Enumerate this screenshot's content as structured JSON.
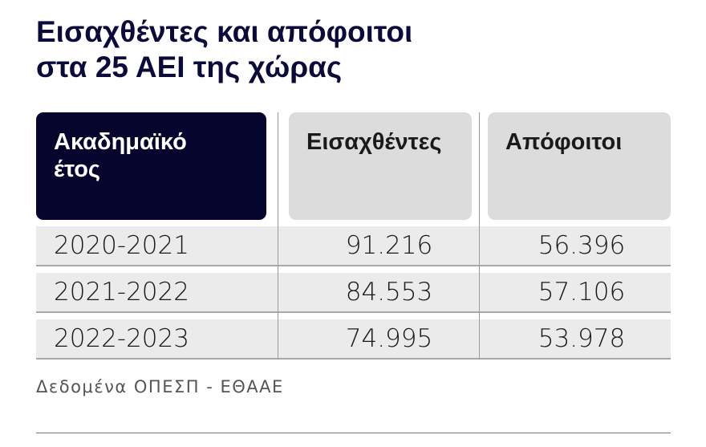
{
  "header": {
    "title_lines": [
      "Εισαχθέντες και απόφοιτοι",
      "στα 25 ΑΕΙ της χώρας"
    ]
  },
  "table": {
    "columns": [
      "Ακαδημαϊκό έτος",
      "Εισαχθέντες",
      "Απόφοιτοι"
    ],
    "rows": [
      [
        "2020-2021",
        "91.216",
        "56.396"
      ],
      [
        "2021-2022",
        "84.553",
        "57.106"
      ],
      [
        "2022-2023",
        "74.995",
        "53.978"
      ]
    ]
  },
  "footer": {
    "source": "Δεδομένα ΟΠΕΣΠ - ΕΘΑΑΕ"
  }
}
